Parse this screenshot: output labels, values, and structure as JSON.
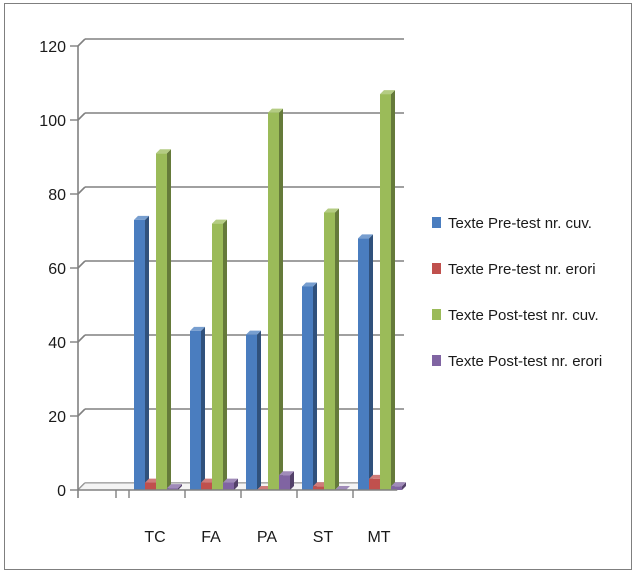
{
  "chart_data": {
    "type": "bar",
    "categories": [
      "TC",
      "FA",
      "PA",
      "ST",
      "MT"
    ],
    "series": [
      {
        "name": "Texte Pre-test nr. cuv.",
        "values": [
          73,
          43,
          42,
          55,
          68
        ],
        "color": "#4a7dbf"
      },
      {
        "name": "Texte Pre-test nr. erori",
        "values": [
          2,
          2,
          0,
          1,
          3
        ],
        "color": "#c0504d"
      },
      {
        "name": "Texte Post-test nr. cuv.",
        "values": [
          91,
          72,
          102,
          75,
          107
        ],
        "color": "#9bbb59"
      },
      {
        "name": "Texte Post-test nr. erori",
        "values": [
          0.5,
          2,
          4,
          0,
          1
        ],
        "color": "#8064a2"
      }
    ],
    "yticks": [
      "0",
      "20",
      "40",
      "60",
      "80",
      "100",
      "120"
    ],
    "ylim": [
      0,
      120
    ],
    "grid": true,
    "legend_position": "right",
    "title": "",
    "xlabel": "",
    "ylabel": ""
  }
}
